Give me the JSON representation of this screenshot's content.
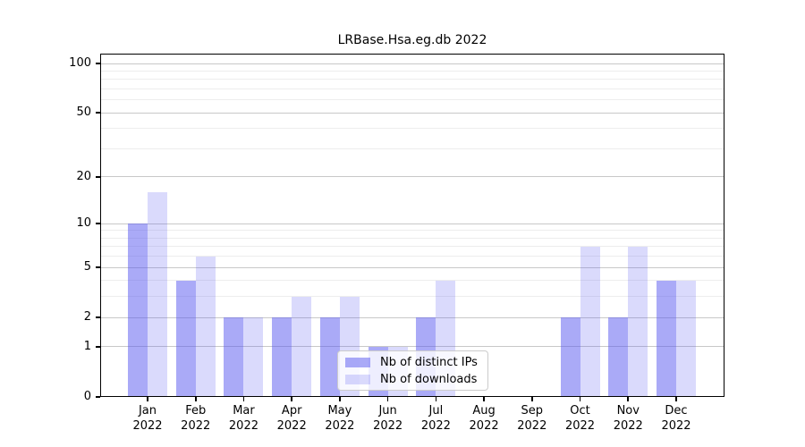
{
  "title": "LRBase.Hsa.eg.db 2022",
  "colors": {
    "ips_bar": "rgba(85,85,240,0.5)",
    "downloads_bar": "rgba(85,85,240,0.22)",
    "grid_major": "#c8c8c8",
    "grid_minor": "#ededed",
    "axis": "#000000",
    "legend_border": "#cccccc"
  },
  "y_axis": {
    "tick_values": [
      100,
      50,
      20,
      10,
      5,
      2,
      1,
      0
    ],
    "tick_labels": [
      "100",
      "50",
      "20",
      "10",
      "5",
      "2",
      "1",
      "0"
    ],
    "minor_gridline_values": [
      3,
      4,
      6,
      7,
      8,
      9,
      30,
      40,
      60,
      70,
      80,
      90
    ],
    "scale": "log1p"
  },
  "x_axis": {
    "months": [
      "Jan",
      "Feb",
      "Mar",
      "Apr",
      "May",
      "Jun",
      "Jul",
      "Aug",
      "Sep",
      "Oct",
      "Nov",
      "Dec"
    ],
    "year": "2022"
  },
  "legend": {
    "entries": [
      {
        "label": "Nb of distinct IPs",
        "color_key": "ips_bar"
      },
      {
        "label": "Nb of downloads",
        "color_key": "downloads_bar"
      }
    ]
  },
  "chart_data": {
    "type": "bar",
    "title": "LRBase.Hsa.eg.db 2022",
    "categories": [
      "Jan 2022",
      "Feb 2022",
      "Mar 2022",
      "Apr 2022",
      "May 2022",
      "Jun 2022",
      "Jul 2022",
      "Aug 2022",
      "Sep 2022",
      "Oct 2022",
      "Nov 2022",
      "Dec 2022"
    ],
    "series": [
      {
        "name": "Nb of distinct IPs",
        "values": [
          10,
          4,
          2,
          2,
          2,
          1,
          2,
          0,
          0,
          2,
          2,
          4
        ]
      },
      {
        "name": "Nb of downloads",
        "values": [
          16,
          6,
          2,
          3,
          3,
          1,
          4,
          0,
          0,
          7,
          7,
          4
        ]
      }
    ],
    "xlabel": "",
    "ylabel": "",
    "ylim": [
      0,
      100
    ],
    "yticks": [
      0,
      1,
      2,
      5,
      10,
      20,
      50,
      100
    ],
    "yscale": "log1p",
    "grid": "horizontal",
    "legend_position": "inside-lower-center"
  }
}
